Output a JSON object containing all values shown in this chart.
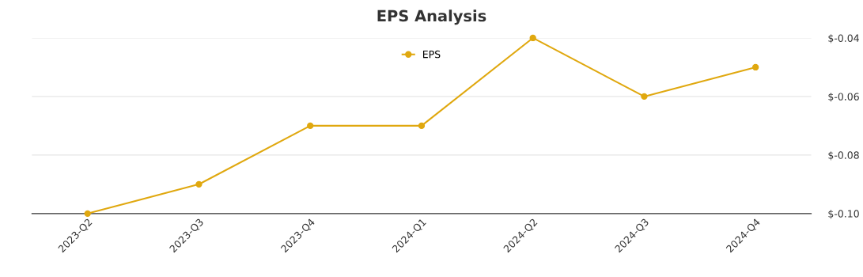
{
  "chart_data": {
    "type": "line",
    "title": "EPS Analysis",
    "categories": [
      "2023-Q2",
      "2023-Q3",
      "2023-Q4",
      "2024-Q1",
      "2024-Q2",
      "2024-Q3",
      "2024-Q4"
    ],
    "series": [
      {
        "name": "EPS",
        "color": "#e0a80f",
        "values": [
          -0.1,
          -0.09,
          -0.07,
          -0.07,
          -0.04,
          -0.06,
          -0.05
        ]
      }
    ],
    "ylim": [
      -0.1,
      -0.04
    ],
    "yticks": [
      {
        "value": -0.1,
        "label": "$-0.10"
      },
      {
        "value": -0.08,
        "label": "$-0.08"
      },
      {
        "value": -0.06,
        "label": "$-0.06"
      },
      {
        "value": -0.04,
        "label": "$-0.04"
      }
    ],
    "grid": "y",
    "legend": "top",
    "marker": "circle",
    "line_style": "solid"
  }
}
